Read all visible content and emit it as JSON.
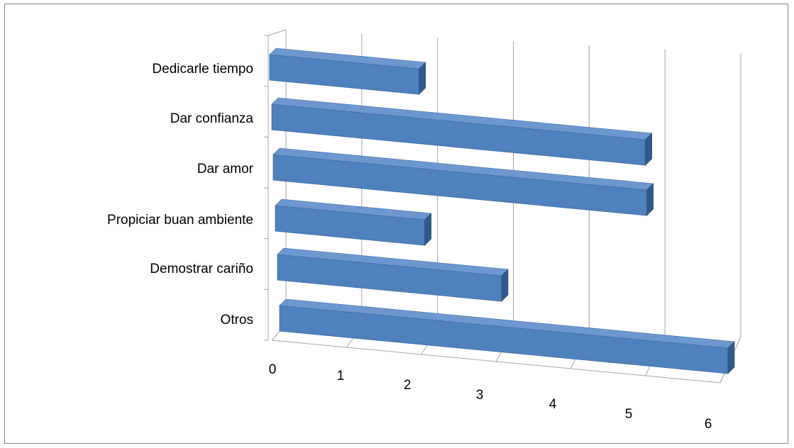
{
  "chart_data": {
    "type": "bar",
    "orientation": "horizontal",
    "style": "3d",
    "categories": [
      "Dedicarle tiempo",
      "Dar confianza",
      "Dar amor",
      "Propiciar buan ambiente",
      "Demostrar cariño",
      "Otros"
    ],
    "values": [
      2,
      5,
      5,
      2,
      3,
      6
    ],
    "xlim": [
      0,
      6
    ],
    "x_ticks": [
      "0",
      "1",
      "2",
      "3",
      "4",
      "5",
      "6"
    ],
    "grid": true,
    "legend": "none",
    "bar_color": "#4f81bd",
    "bar_top_color": "#6d98cf",
    "bar_side_color": "#2f5a8c",
    "grid_color": "#a6a6a6"
  }
}
